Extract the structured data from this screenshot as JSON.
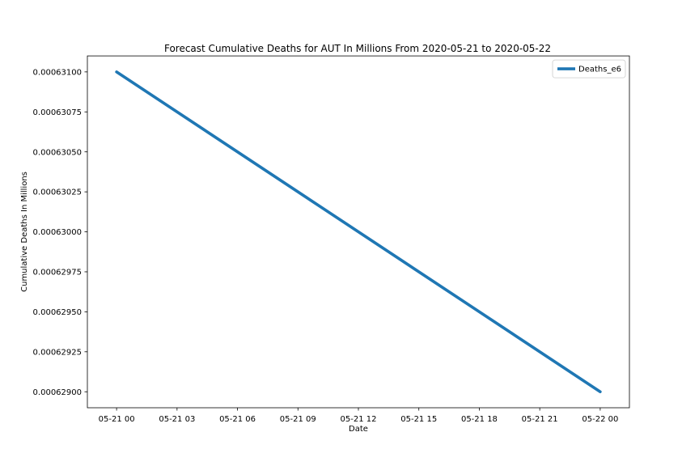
{
  "chart_data": {
    "type": "line",
    "title": "Forecast Cumulative Deaths for AUT In Millions From 2020-05-21 to 2020-05-22",
    "xlabel": "Date",
    "ylabel": "Cumulative Deaths In Millions",
    "x": [
      "2020-05-21 00:00",
      "2020-05-22 00:00"
    ],
    "series": [
      {
        "name": "Deaths_e6",
        "values": [
          0.000631,
          0.000629
        ],
        "color": "#1f77b4"
      }
    ],
    "xlim": [
      "2020-05-20 22:33",
      "2020-05-22 01:27"
    ],
    "ylim": [
      0.0006289,
      0.0006311
    ],
    "xticks": [
      {
        "value": "2020-05-21 00:00",
        "label": "05-21 00"
      },
      {
        "value": "2020-05-21 03:00",
        "label": "05-21 03"
      },
      {
        "value": "2020-05-21 06:00",
        "label": "05-21 06"
      },
      {
        "value": "2020-05-21 09:00",
        "label": "05-21 09"
      },
      {
        "value": "2020-05-21 12:00",
        "label": "05-21 12"
      },
      {
        "value": "2020-05-21 15:00",
        "label": "05-21 15"
      },
      {
        "value": "2020-05-21 18:00",
        "label": "05-21 18"
      },
      {
        "value": "2020-05-21 21:00",
        "label": "05-21 21"
      },
      {
        "value": "2020-05-22 00:00",
        "label": "05-22 00"
      }
    ],
    "yticks": [
      {
        "value": 0.000631,
        "label": "0.00063100"
      },
      {
        "value": 0.00063075,
        "label": "0.00063075"
      },
      {
        "value": 0.0006305,
        "label": "0.00063050"
      },
      {
        "value": 0.00063025,
        "label": "0.00063025"
      },
      {
        "value": 0.00063,
        "label": "0.00063000"
      },
      {
        "value": 0.00062975,
        "label": "0.00062975"
      },
      {
        "value": 0.0006295,
        "label": "0.00062950"
      },
      {
        "value": 0.00062925,
        "label": "0.00062925"
      },
      {
        "value": 0.000629,
        "label": "0.00062900"
      }
    ],
    "grid": false,
    "legend": "upper right"
  }
}
